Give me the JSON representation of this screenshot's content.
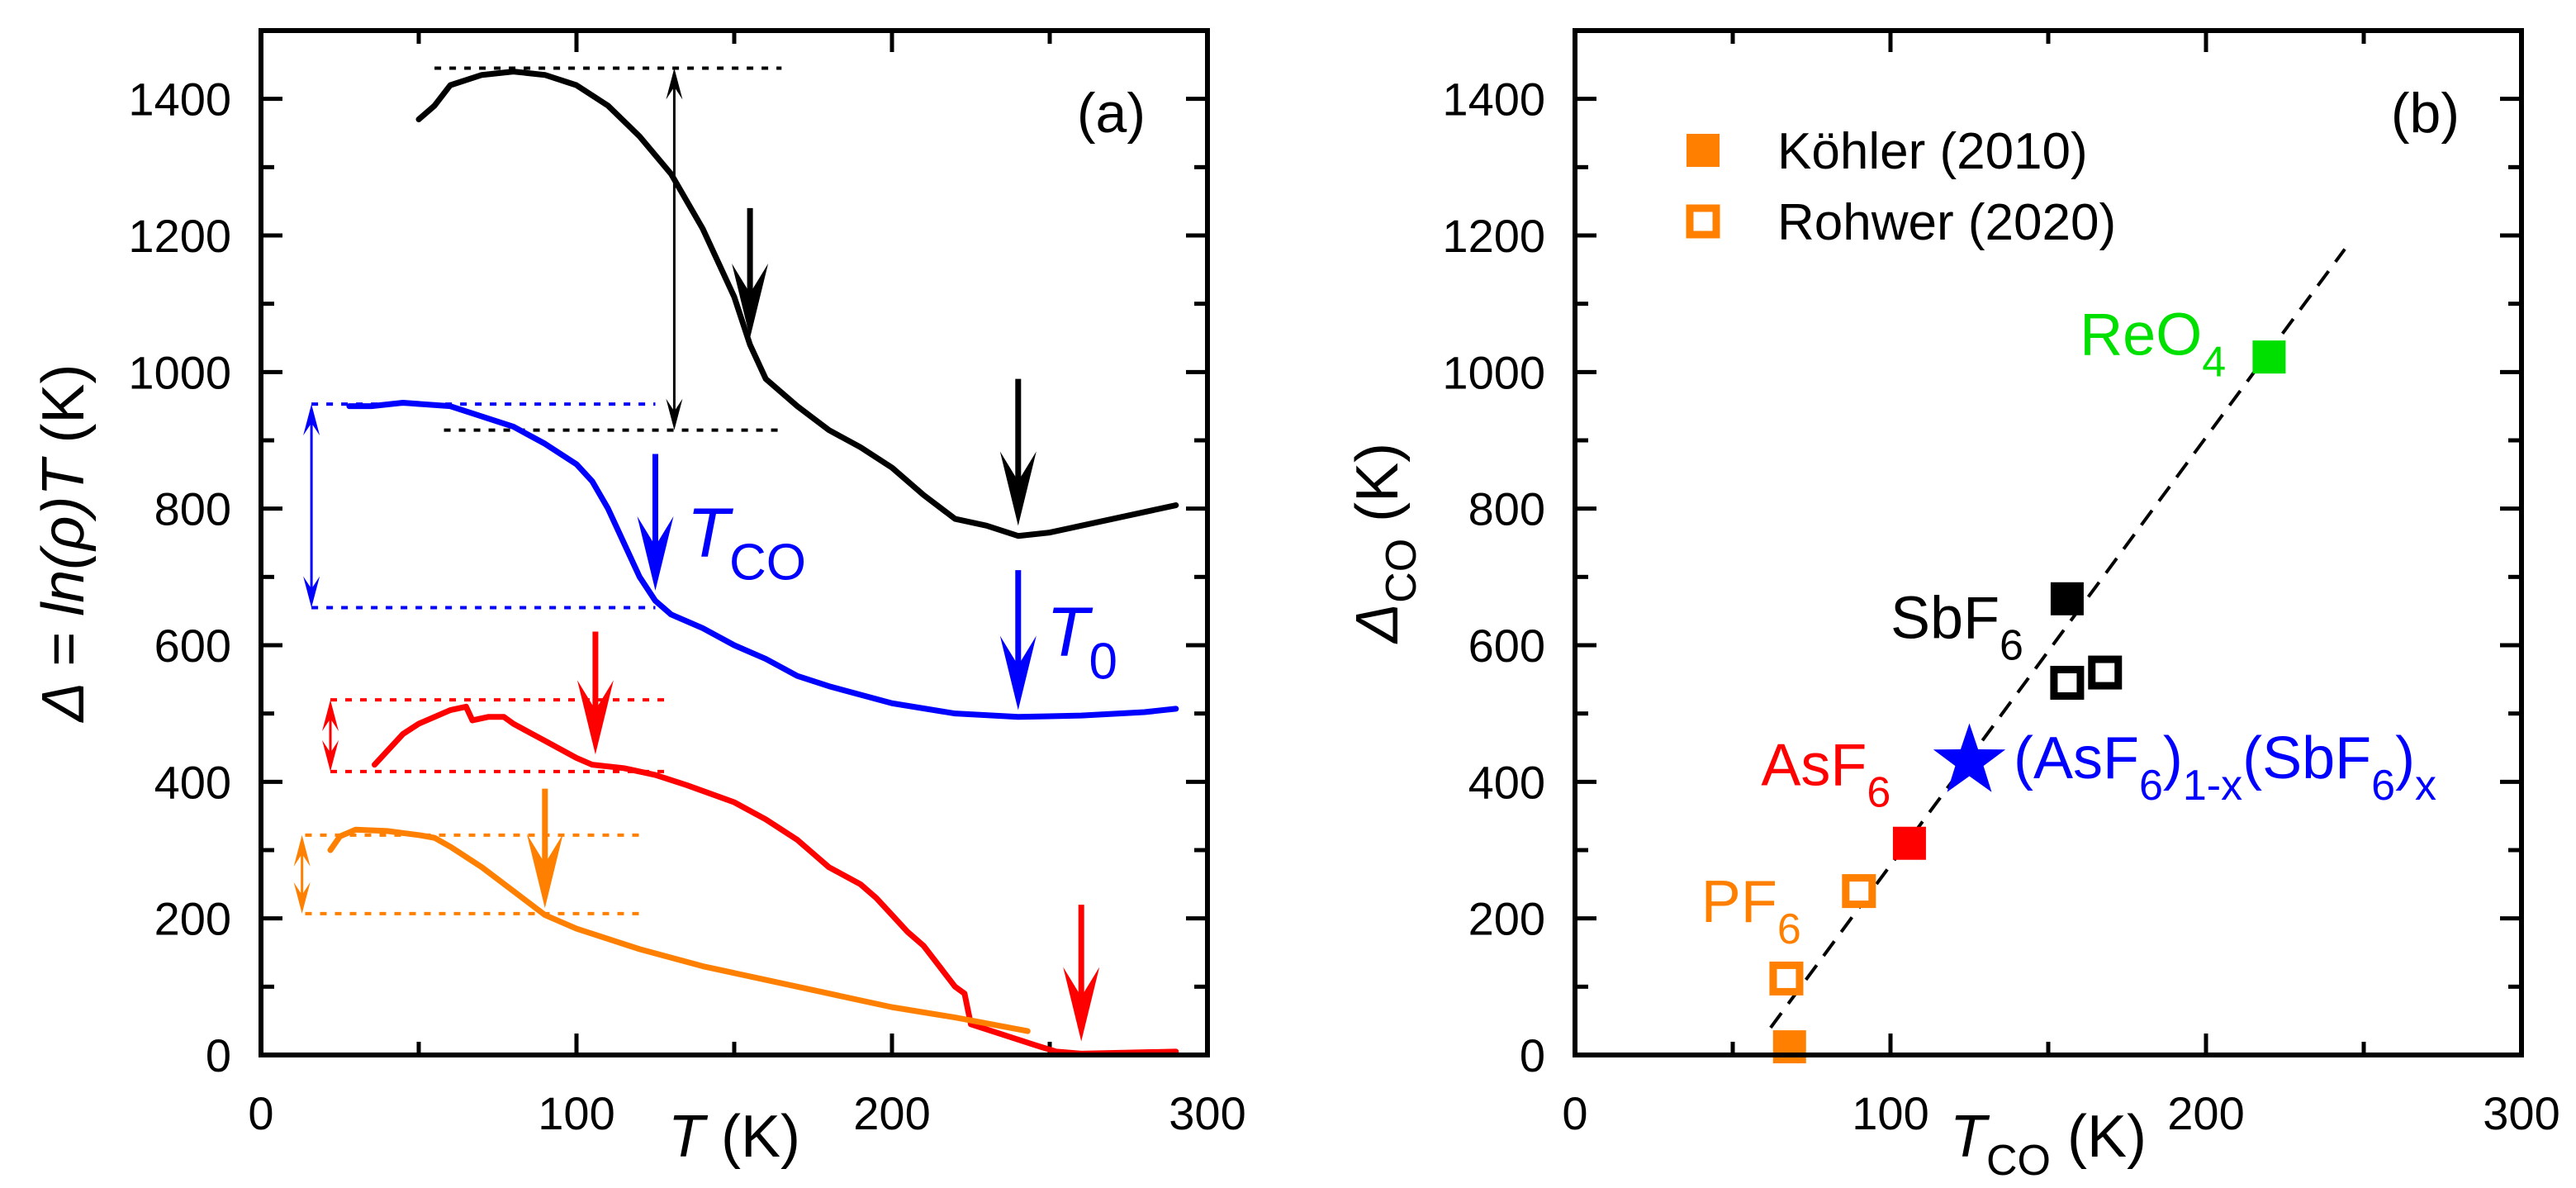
{
  "chart_data": [
    {
      "type": "line",
      "panel_label": "(a)",
      "xlabel": {
        "main": "T",
        "rest": " (K)"
      },
      "ylabel": {
        "main": "Δ = ln(ρ)T",
        "rest": " (K)"
      },
      "xlim": [
        0,
        300
      ],
      "ylim": [
        0,
        1500
      ],
      "xticks": [
        0,
        100,
        200,
        300
      ],
      "yticks": [
        0,
        200,
        400,
        600,
        800,
        1000,
        1200,
        1400
      ],
      "grid": false,
      "series": [
        {
          "name": "black",
          "color": "#000000",
          "x": [
            50,
            55,
            60,
            70,
            80,
            90,
            100,
            110,
            120,
            130,
            140,
            150,
            155,
            160,
            170,
            180,
            190,
            200,
            210,
            220,
            230,
            240,
            250,
            260,
            270,
            280,
            290
          ],
          "y": [
            1370,
            1390,
            1420,
            1435,
            1440,
            1435,
            1420,
            1390,
            1345,
            1290,
            1210,
            1110,
            1040,
            990,
            950,
            915,
            890,
            860,
            820,
            785,
            775,
            760,
            765,
            775,
            785,
            795,
            805
          ]
        },
        {
          "name": "blue",
          "color": "#0000ff",
          "x": [
            28,
            35,
            45,
            60,
            70,
            80,
            90,
            100,
            105,
            110,
            115,
            120,
            125,
            130,
            140,
            150,
            160,
            170,
            180,
            200,
            220,
            240,
            260,
            280,
            290
          ],
          "y": [
            950,
            950,
            955,
            950,
            935,
            920,
            895,
            865,
            840,
            800,
            750,
            700,
            665,
            645,
            625,
            600,
            580,
            555,
            540,
            515,
            500,
            495,
            497,
            502,
            507
          ]
        },
        {
          "name": "red",
          "color": "#ff0000",
          "x": [
            36,
            40,
            45,
            50,
            55,
            60,
            65,
            67,
            72,
            77,
            80,
            90,
            100,
            105,
            115,
            125,
            135,
            150,
            160,
            170,
            175,
            180,
            190,
            195,
            200,
            205,
            210,
            215,
            220,
            223,
            225,
            235,
            245,
            252,
            260,
            290
          ],
          "y": [
            425,
            445,
            470,
            485,
            495,
            505,
            510,
            490,
            495,
            495,
            485,
            460,
            435,
            425,
            420,
            410,
            395,
            370,
            345,
            315,
            295,
            275,
            250,
            230,
            205,
            180,
            160,
            130,
            100,
            90,
            45,
            30,
            15,
            5,
            2,
            5
          ]
        },
        {
          "name": "orange",
          "color": "#ff8000",
          "x": [
            22,
            25,
            30,
            40,
            50,
            55,
            60,
            70,
            80,
            90,
            100,
            120,
            140,
            160,
            180,
            200,
            220,
            243
          ],
          "y": [
            300,
            320,
            330,
            328,
            322,
            318,
            305,
            275,
            240,
            205,
            185,
            155,
            130,
            110,
            90,
            70,
            55,
            35
          ]
        }
      ],
      "arrows": [
        {
          "color": "#000000",
          "x": 155,
          "y_from": 1240,
          "y_to": 1050
        },
        {
          "color": "#000000",
          "x": 240,
          "y_from": 990,
          "y_to": 775
        },
        {
          "color": "#0000ff",
          "x": 125,
          "y_from": 880,
          "y_to": 680
        },
        {
          "color": "#0000ff",
          "x": 240,
          "y_from": 710,
          "y_to": 505
        },
        {
          "color": "#ff0000",
          "x": 106,
          "y_from": 620,
          "y_to": 440
        },
        {
          "color": "#ff0000",
          "x": 260,
          "y_from": 220,
          "y_to": 20
        },
        {
          "color": "#ff8000",
          "x": 90,
          "y_from": 390,
          "y_to": 215
        }
      ],
      "dotted_lines": [
        {
          "color": "#000000",
          "y": 1445,
          "x_from": 55,
          "x_to": 165
        },
        {
          "color": "#000000",
          "y": 915,
          "x_from": 58,
          "x_to": 165
        },
        {
          "color": "#0000ff",
          "y": 953,
          "x_from": 16,
          "x_to": 125
        },
        {
          "color": "#0000ff",
          "y": 655,
          "x_from": 16,
          "x_to": 125
        },
        {
          "color": "#ff0000",
          "y": 520,
          "x_from": 22,
          "x_to": 128
        },
        {
          "color": "#ff0000",
          "y": 415,
          "x_from": 22,
          "x_to": 128
        },
        {
          "color": "#ff8000",
          "y": 322,
          "x_from": 14,
          "x_to": 120
        },
        {
          "color": "#ff8000",
          "y": 207,
          "x_from": 14,
          "x_to": 120
        }
      ],
      "double_arrows": [
        {
          "color": "#000000",
          "x": 131,
          "y_from": 1445,
          "y_to": 915
        },
        {
          "color": "#0000ff",
          "x": 16,
          "y_from": 953,
          "y_to": 655
        },
        {
          "color": "#ff0000",
          "x": 22,
          "y_from": 520,
          "y_to": 415
        },
        {
          "color": "#ff8000",
          "x": 13,
          "y_from": 322,
          "y_to": 207
        }
      ],
      "annotations": [
        {
          "main": "T",
          "sub": "CO",
          "color": "#0000ff",
          "x": 135,
          "y": 730
        },
        {
          "main": "T",
          "sub": "0",
          "color": "#0000ff",
          "x": 249,
          "y": 585
        }
      ]
    },
    {
      "type": "scatter",
      "panel_label": "(b)",
      "xlabel": {
        "main": "T",
        "sub": "CO",
        "rest": " (K)"
      },
      "ylabel": {
        "main": "Δ",
        "sub": "CO",
        "rest": " (K)"
      },
      "xlim": [
        0,
        300
      ],
      "ylim": [
        0,
        1500
      ],
      "xticks": [
        0,
        100,
        200,
        300
      ],
      "yticks": [
        0,
        200,
        400,
        600,
        800,
        1000,
        1200,
        1400
      ],
      "grid": false,
      "legend": {
        "placement": "top-left",
        "entries": [
          {
            "label": "Köhler (2010)",
            "marker": "filled-square",
            "color": "#ff8000"
          },
          {
            "label": "Rohwer (2020)",
            "marker": "open-square",
            "color": "#ff8000"
          }
        ]
      },
      "series": [
        {
          "name": "Köhler (2010)",
          "marker": "filled-square",
          "points": [
            {
              "x": 68,
              "y": 12,
              "color": "#ff8000"
            },
            {
              "x": 106,
              "y": 310,
              "color": "#ff0000"
            },
            {
              "x": 156,
              "y": 668,
              "color": "#000000"
            },
            {
              "x": 220,
              "y": 1022,
              "color": "#00e000"
            }
          ]
        },
        {
          "name": "Rohwer (2020)",
          "marker": "open-square",
          "points": [
            {
              "x": 67,
              "y": 112,
              "color": "#ff8000"
            },
            {
              "x": 90,
              "y": 240,
              "color": "#ff8000"
            },
            {
              "x": 156,
              "y": 545,
              "color": "#000000"
            },
            {
              "x": 168,
              "y": 560,
              "color": "#000000"
            }
          ]
        },
        {
          "name": "(AsF6)1-x(SbF6)x",
          "marker": "star",
          "points": [
            {
              "x": 125,
              "y": 430,
              "color": "#0000ff"
            }
          ]
        }
      ],
      "fit_line": {
        "style": "dashed",
        "color": "#000000",
        "x": [
          62,
          244
        ],
        "y": [
          40,
          1180
        ]
      },
      "annotations": [
        {
          "parts": [
            [
              "ReO",
              "n"
            ],
            [
              "4",
              "s"
            ]
          ],
          "color": "#00e000",
          "x": 160,
          "y": 1025
        },
        {
          "parts": [
            [
              "SbF",
              "n"
            ],
            [
              "6",
              "s"
            ]
          ],
          "color": "#000000",
          "x": 100,
          "y": 610
        },
        {
          "parts": [
            [
              "AsF",
              "n"
            ],
            [
              "6",
              "s"
            ]
          ],
          "color": "#ff0000",
          "x": 59,
          "y": 395
        },
        {
          "parts": [
            [
              "PF",
              "n"
            ],
            [
              "6",
              "s"
            ]
          ],
          "color": "#ff8000",
          "x": 40,
          "y": 195
        },
        {
          "parts": [
            [
              "(AsF",
              "n"
            ],
            [
              "6",
              "s"
            ],
            [
              ")",
              "n"
            ],
            [
              "1-x",
              "s"
            ],
            [
              "(SbF",
              "n"
            ],
            [
              "6",
              "s"
            ],
            [
              ")",
              "n"
            ],
            [
              "x",
              "s"
            ]
          ],
          "color": "#0000ff",
          "x": 139,
          "y": 405
        }
      ]
    }
  ]
}
